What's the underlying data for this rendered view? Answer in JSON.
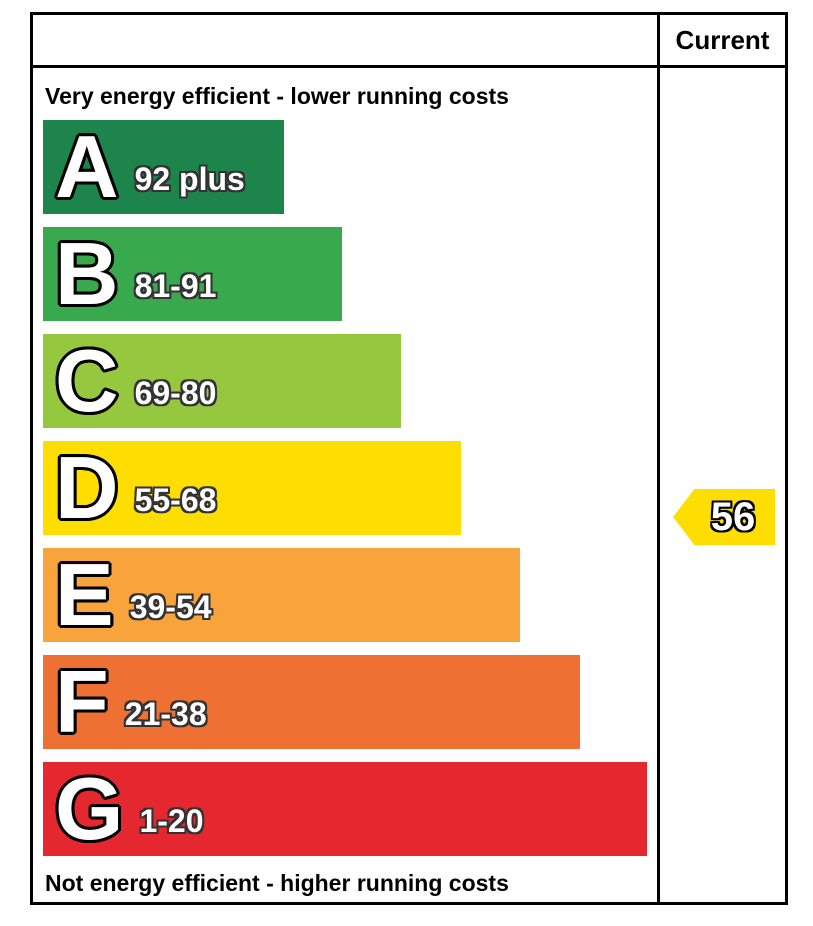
{
  "header": {
    "current_label": "Current"
  },
  "labels": {
    "top": "Very energy efficient - lower running costs",
    "bottom": "Not energy efficient - higher running costs"
  },
  "bands": [
    {
      "letter": "A",
      "range": "92 plus",
      "color": "#1d854c",
      "width_pct": 39.2
    },
    {
      "letter": "B",
      "range": "81-91",
      "color": "#38a94c",
      "width_pct": 48.7
    },
    {
      "letter": "C",
      "range": "69-80",
      "color": "#95c83e",
      "width_pct": 58.3
    },
    {
      "letter": "D",
      "range": "55-68",
      "color": "#fede00",
      "width_pct": 68.0
    },
    {
      "letter": "E",
      "range": "39-54",
      "color": "#f8a33c",
      "width_pct": 77.7
    },
    {
      "letter": "F",
      "range": "21-38",
      "color": "#ef7033",
      "width_pct": 87.4
    },
    {
      "letter": "G",
      "range": "1-20",
      "color": "#e52730",
      "width_pct": 98.4
    }
  ],
  "current": {
    "value": "56",
    "band": "D",
    "color": "#fede00"
  },
  "chart_data": {
    "type": "bar",
    "title": "Energy efficiency rating (EPC)",
    "categories": [
      "A",
      "B",
      "C",
      "D",
      "E",
      "F",
      "G"
    ],
    "band_ranges": [
      "92 plus",
      "81-91",
      "69-80",
      "55-68",
      "39-54",
      "21-38",
      "1-20"
    ],
    "band_colors": [
      "#1d854c",
      "#38a94c",
      "#95c83e",
      "#fede00",
      "#f8a33c",
      "#ef7033",
      "#e52730"
    ],
    "bar_width_percent": [
      39.2,
      48.7,
      58.3,
      68.0,
      77.7,
      87.4,
      98.4
    ],
    "top_label": "Very energy efficient - lower running costs",
    "bottom_label": "Not energy efficient - higher running costs",
    "columns": [
      "Current"
    ],
    "current_rating": 56,
    "current_band": "D"
  }
}
